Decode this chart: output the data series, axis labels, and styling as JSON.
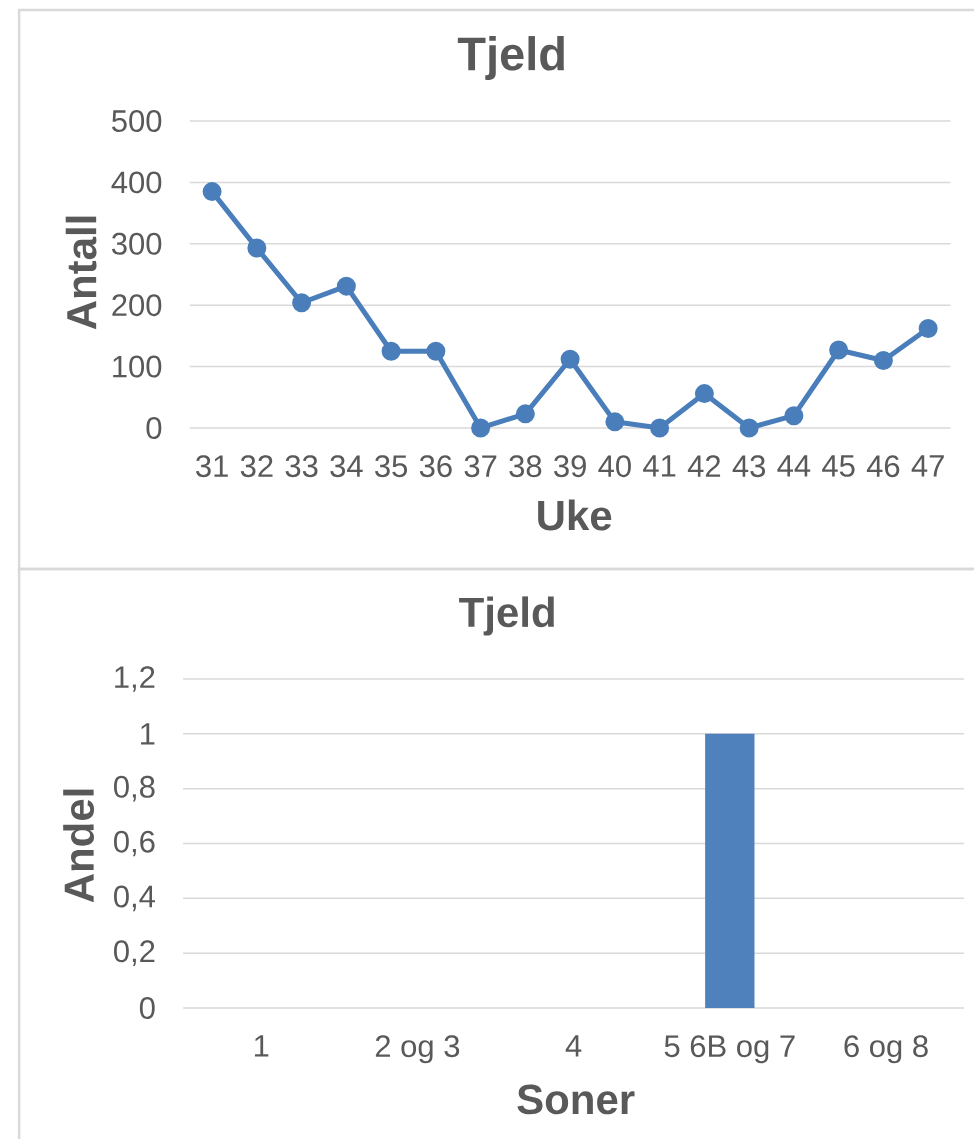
{
  "chart_data": [
    {
      "type": "line",
      "title": "Tjeld",
      "xlabel": "Uke",
      "ylabel": "Antall",
      "categories": [
        "31",
        "32",
        "33",
        "34",
        "35",
        "36",
        "37",
        "38",
        "39",
        "40",
        "41",
        "42",
        "43",
        "44",
        "45",
        "46",
        "47"
      ],
      "values": [
        385,
        293,
        204,
        231,
        125,
        125,
        0,
        23,
        112,
        10,
        0,
        56,
        0,
        20,
        127,
        110,
        162
      ],
      "color": "#4a7ebb",
      "marker": "circle",
      "line_style": "solid",
      "ylim": [
        0,
        500
      ],
      "yticks": [
        0,
        100,
        200,
        300,
        400,
        500
      ],
      "grid": "y"
    },
    {
      "type": "bar",
      "title": "Tjeld",
      "xlabel": "Soner",
      "ylabel": "Andel",
      "categories": [
        "1",
        "2 og 3",
        "4",
        "5 6B og 7",
        "6 og 8"
      ],
      "values": [
        0,
        0,
        0,
        1,
        0
      ],
      "color": "#4f81bd",
      "ylim": [
        0,
        1.2
      ],
      "yticks": [
        0,
        {
          "value": 0.2,
          "label": "0,2"
        },
        {
          "value": 0.4,
          "label": "0,4"
        },
        {
          "value": 0.6,
          "label": "0,6"
        },
        {
          "value": 0.8,
          "label": "0,8"
        },
        1,
        {
          "value": 1.2,
          "label": "1,2"
        }
      ],
      "grid": "y"
    }
  ]
}
